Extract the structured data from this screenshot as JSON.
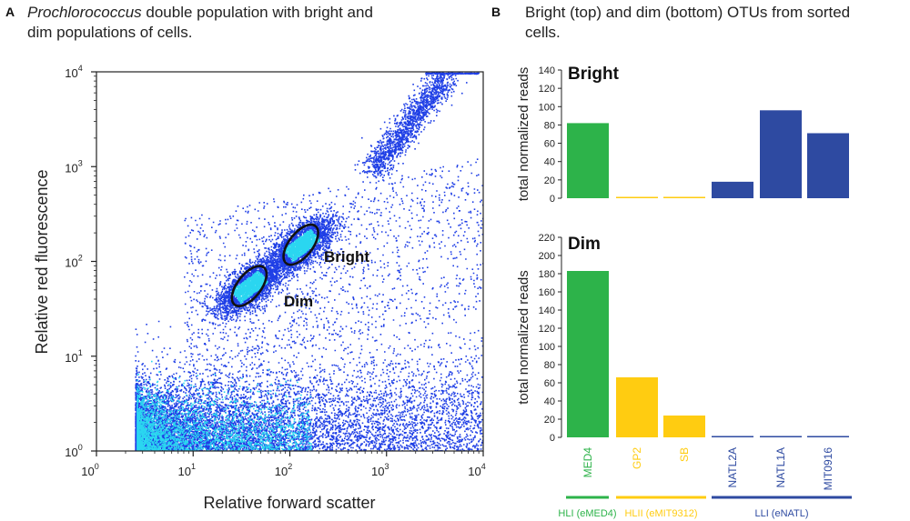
{
  "panel_a": {
    "letter": "A",
    "title_italic": "Prochlorococcus",
    "title_rest": " double population with bright and",
    "title_line2": "dim populations of cells.",
    "colors": {
      "dots": "#1f3fe6",
      "dense": "#2ad6f0",
      "gate": "#111111"
    },
    "chart_data": {
      "type": "scatter",
      "title": "Prochlorococcus double population with bright and dim populations of cells.",
      "xlabel": "Relative forward scatter",
      "ylabel": "Relative red fluorescence",
      "xscale": "log",
      "yscale": "log",
      "xlim": [
        1,
        10000
      ],
      "ylim": [
        1,
        10000
      ],
      "x_ticks": [
        {
          "base": "10",
          "exp": "0"
        },
        {
          "base": "10",
          "exp": "1"
        },
        {
          "base": "10",
          "exp": "2"
        },
        {
          "base": "10",
          "exp": "3"
        },
        {
          "base": "10",
          "exp": "4"
        }
      ],
      "y_ticks": [
        {
          "base": "10",
          "exp": "0"
        },
        {
          "base": "10",
          "exp": "1"
        },
        {
          "base": "10",
          "exp": "2"
        },
        {
          "base": "10",
          "exp": "3"
        },
        {
          "base": "10",
          "exp": "4"
        }
      ],
      "gates": [
        {
          "name": "Bright",
          "center": [
            130,
            150
          ]
        },
        {
          "name": "Dim",
          "center": [
            38,
            55
          ]
        }
      ],
      "populations": [
        {
          "name": "noise",
          "x_range": [
            2.5,
            10000
          ],
          "y_range": [
            1,
            8
          ]
        },
        {
          "name": "dim",
          "center": [
            38,
            55
          ]
        },
        {
          "name": "bright",
          "center": [
            130,
            150
          ]
        },
        {
          "name": "beads",
          "center": [
            1800,
            3000
          ]
        }
      ]
    }
  },
  "panel_b": {
    "letter": "B",
    "title_line1": "Bright (top) and dim (bottom) OTUs from sorted",
    "title_line2": "cells.",
    "colors": {
      "HLI": "#2db34a",
      "HLII": "#ffcc11",
      "LLI": "#2e4aa1"
    },
    "chart_data": [
      {
        "type": "bar",
        "title": "Bright",
        "ylabel": "total normalized reads",
        "ylim": [
          0,
          140
        ],
        "yticks": [
          "0",
          "20",
          "40",
          "60",
          "80",
          "100",
          "120",
          "140"
        ],
        "categories": [
          "MED4",
          "GP2",
          "SB",
          "NATL2A",
          "NATL1A",
          "MIT0916"
        ],
        "values": [
          82,
          1,
          1.5,
          18,
          96,
          71
        ],
        "clades": [
          "HLI",
          "HLII",
          "HLII",
          "LLI",
          "LLI",
          "LLI"
        ]
      },
      {
        "type": "bar",
        "title": "Dim",
        "ylabel": "total normalized reads",
        "ylim": [
          0,
          220
        ],
        "yticks": [
          "0",
          "20",
          "40",
          "60",
          "80",
          "100",
          "120",
          "140",
          "160",
          "180",
          "200",
          "220"
        ],
        "categories": [
          "MED4",
          "GP2",
          "SB",
          "NATL2A",
          "NATL1A",
          "MIT0916"
        ],
        "values": [
          183,
          66,
          24,
          0.5,
          0.5,
          0.5
        ],
        "clades": [
          "HLI",
          "HLII",
          "HLII",
          "LLI",
          "LLI",
          "LLI"
        ]
      }
    ],
    "category_labels": [
      "MED4",
      "GP2",
      "SB",
      "NATL2A",
      "NATL1A",
      "MIT0916"
    ],
    "category_clades": [
      "HLI",
      "HLII",
      "HLII",
      "LLI",
      "LLI",
      "LLI"
    ],
    "clade_groups": [
      {
        "key": "HLI",
        "label": "HLI (eMED4)"
      },
      {
        "key": "HLII",
        "label": "HLII (eMIT9312)"
      },
      {
        "key": "LLI",
        "label": "LLI (eNATL)"
      }
    ]
  }
}
